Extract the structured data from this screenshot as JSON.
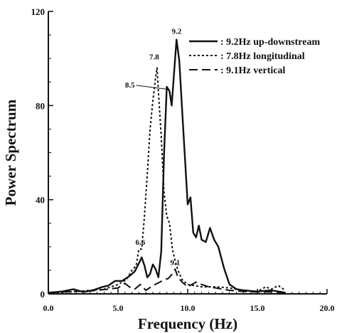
{
  "chart_data": {
    "type": "line",
    "xlabel": "Frequency (Hz)",
    "ylabel": "Power Spectrum",
    "xlim": [
      0,
      20
    ],
    "ylim": [
      0,
      120
    ],
    "x_ticks": [
      "0.0",
      "5.0",
      "10.0",
      "15.0",
      "20.0"
    ],
    "y_ticks": [
      "0",
      "40",
      "80",
      "120"
    ],
    "legend_position": "top-right",
    "series": [
      {
        "name": ": 9.2Hz up-downstream",
        "style": "solid",
        "points": [
          [
            0.0,
            0.5
          ],
          [
            1.0,
            1.0
          ],
          [
            1.8,
            2.0
          ],
          [
            2.5,
            0.8
          ],
          [
            3.2,
            1.5
          ],
          [
            3.8,
            2.8
          ],
          [
            4.3,
            3.5
          ],
          [
            4.8,
            5.5
          ],
          [
            5.3,
            5.5
          ],
          [
            5.8,
            7.5
          ],
          [
            6.2,
            9.5
          ],
          [
            6.5,
            13.0
          ],
          [
            6.7,
            15.5
          ],
          [
            6.9,
            12.0
          ],
          [
            7.1,
            7.0
          ],
          [
            7.3,
            8.5
          ],
          [
            7.5,
            12.5
          ],
          [
            7.7,
            10.5
          ],
          [
            7.9,
            7.0
          ],
          [
            8.1,
            18.0
          ],
          [
            8.3,
            59.0
          ],
          [
            8.5,
            88.0
          ],
          [
            8.7,
            86.0
          ],
          [
            8.85,
            80.0
          ],
          [
            9.0,
            92.0
          ],
          [
            9.2,
            108.0
          ],
          [
            9.4,
            99.0
          ],
          [
            9.6,
            78.0
          ],
          [
            9.8,
            58.0
          ],
          [
            10.0,
            38.0
          ],
          [
            10.2,
            41.0
          ],
          [
            10.4,
            26.0
          ],
          [
            10.6,
            24.0
          ],
          [
            10.8,
            29.0
          ],
          [
            11.0,
            23.0
          ],
          [
            11.3,
            22.0
          ],
          [
            11.6,
            28.0
          ],
          [
            11.9,
            23.0
          ],
          [
            12.2,
            20.0
          ],
          [
            12.6,
            11.0
          ],
          [
            13.0,
            4.0
          ],
          [
            13.5,
            2.0
          ],
          [
            14.0,
            1.5
          ],
          [
            15.0,
            1.0
          ],
          [
            16.0,
            1.5
          ],
          [
            17.0,
            0.5
          ]
        ]
      },
      {
        "name": ": 7.8Hz longitudinal",
        "style": "dotted",
        "points": [
          [
            0.0,
            0.3
          ],
          [
            2.0,
            1.0
          ],
          [
            3.0,
            1.5
          ],
          [
            4.0,
            2.0
          ],
          [
            5.0,
            4.0
          ],
          [
            5.6,
            6.0
          ],
          [
            6.0,
            10.0
          ],
          [
            6.3,
            12.0
          ],
          [
            6.5,
            19.0
          ],
          [
            6.7,
            19.0
          ],
          [
            6.9,
            33.0
          ],
          [
            7.1,
            51.0
          ],
          [
            7.3,
            70.0
          ],
          [
            7.5,
            82.0
          ],
          [
            7.7,
            92.0
          ],
          [
            7.8,
            96.0
          ],
          [
            7.95,
            81.0
          ],
          [
            8.1,
            67.0
          ],
          [
            8.3,
            43.0
          ],
          [
            8.5,
            33.0
          ],
          [
            8.7,
            30.0
          ],
          [
            8.9,
            19.0
          ],
          [
            9.1,
            14.0
          ],
          [
            9.3,
            10.0
          ],
          [
            9.6,
            6.0
          ],
          [
            10.0,
            4.0
          ],
          [
            11.0,
            3.0
          ],
          [
            12.0,
            3.0
          ],
          [
            13.0,
            2.5
          ],
          [
            14.0,
            1.5
          ],
          [
            15.0,
            1.0
          ],
          [
            15.6,
            3.0
          ],
          [
            16.0,
            2.0
          ],
          [
            16.5,
            3.5
          ],
          [
            17.0,
            1.5
          ]
        ]
      },
      {
        "name": ": 9.1Hz vertical",
        "style": "dashed",
        "points": [
          [
            0.0,
            0.5
          ],
          [
            1.5,
            1.0
          ],
          [
            3.0,
            1.2
          ],
          [
            4.0,
            1.8
          ],
          [
            5.0,
            2.5
          ],
          [
            5.5,
            4.5
          ],
          [
            5.8,
            3.0
          ],
          [
            6.2,
            2.0
          ],
          [
            6.6,
            4.0
          ],
          [
            7.0,
            1.5
          ],
          [
            7.5,
            3.5
          ],
          [
            8.0,
            5.0
          ],
          [
            8.3,
            6.0
          ],
          [
            8.6,
            6.5
          ],
          [
            8.9,
            8.5
          ],
          [
            9.1,
            10.5
          ],
          [
            9.3,
            7.0
          ],
          [
            9.6,
            5.0
          ],
          [
            10.0,
            3.0
          ],
          [
            10.6,
            5.0
          ],
          [
            11.0,
            4.0
          ],
          [
            11.5,
            3.0
          ],
          [
            12.0,
            2.5
          ],
          [
            13.0,
            1.5
          ],
          [
            14.0,
            1.0
          ],
          [
            15.0,
            0.8
          ],
          [
            16.0,
            0.8
          ],
          [
            17.0,
            0.5
          ]
        ]
      }
    ],
    "annotations": [
      {
        "text": "9.2",
        "x": 9.2,
        "y": 108
      },
      {
        "text": "7.8",
        "x": 7.8,
        "y": 96
      },
      {
        "text": "8.5",
        "x": 8.5,
        "y": 88
      },
      {
        "text": "6.6",
        "x": 6.6,
        "y": 19
      },
      {
        "text": "9.1",
        "x": 9.1,
        "y": 10.5
      }
    ]
  }
}
